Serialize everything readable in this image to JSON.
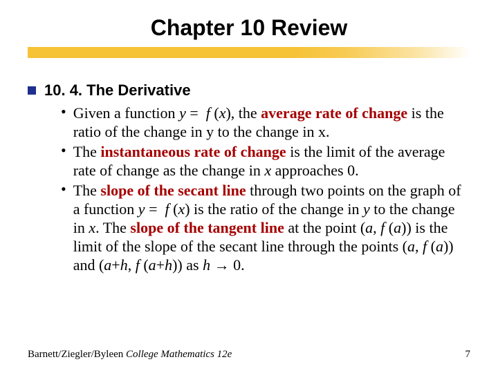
{
  "title": "Chapter 10 Review",
  "underline_color": "#f6c236",
  "section": {
    "bullet_color": "#1e2f8f",
    "heading": "10. 4. The Derivative",
    "items": [
      {
        "html": "Given a function <span class='i'>y</span> = &nbsp;<span class='i'>f</span> (<span class='i'>x</span>), the <span class='r'>average rate of change</span> is the ratio of the change in y to the change in x."
      },
      {
        "html": "The <span class='r'>instantaneous rate of change</span> is the limit of the average rate of change as the change in <span class='i'>x</span> approaches 0."
      },
      {
        "html": "The <span class='r'>slope of the secant line</span> through two points on the graph of a function <span class='i'>y</span> = &nbsp;<span class='i'>f</span> (<span class='i'>x</span>) is the ratio of the change in <span class='i'>y</span> to the change in <span class='i'>x</span>. The <span class='r'>slope of the tangent line</span> at the point (<span class='i'>a</span>, <span class='i'>f</span> (<span class='i'>a</span>)) is the limit of the slope of the secant line through the points (<span class='i'>a</span>, <span class='i'>f</span> (<span class='i'>a</span>)) and (<span class='i'>a</span>+<span class='i'>h</span>, <span class='i'>f</span> (<span class='i'>a</span>+<span class='i'>h</span>)) as <span class='i'>h</span> <span class='arrow'>&#8594;</span> 0."
      }
    ]
  },
  "footer": {
    "left_html": "Barnett/Ziegler/Byleen <span class='i'>College Mathematics 12e</span>",
    "page": "7"
  },
  "typography": {
    "title_font": "Verdana",
    "title_size_pt": 32,
    "heading_font": "Verdana",
    "heading_size_pt": 22,
    "body_font": "Times New Roman",
    "body_size_pt": 22,
    "footer_size_pt": 15,
    "emphasis_color": "#a50000",
    "text_color": "#000000",
    "background_color": "#ffffff"
  }
}
